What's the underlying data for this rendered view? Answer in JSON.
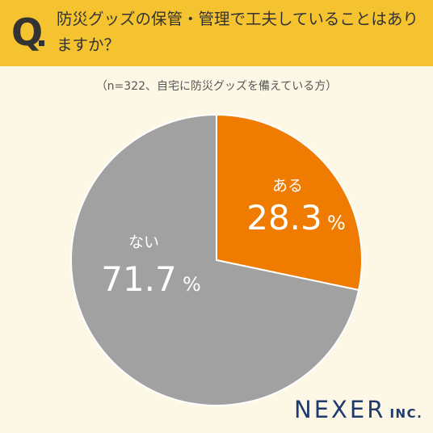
{
  "header": {
    "q_mark": "Q",
    "question": "防災グッズの保管・管理で工夫していることはありますか？"
  },
  "note": "（n=322、自宅に防災グッズを備えている方）",
  "chart_data": {
    "type": "pie",
    "title": "防災グッズの保管・管理で工夫していることはありますか？",
    "subtitle": "（n=322、自宅に防災グッズを備えている方）",
    "slices": [
      {
        "label": "ある",
        "value": 28.3,
        "value_label": "28.3",
        "unit": "%",
        "color": "#ef7b00"
      },
      {
        "label": "ない",
        "value": 71.7,
        "value_label": "71.7",
        "unit": "%",
        "color": "#a1a1a1"
      }
    ]
  },
  "logo": {
    "main": "NEXER",
    "sub": "INC."
  }
}
